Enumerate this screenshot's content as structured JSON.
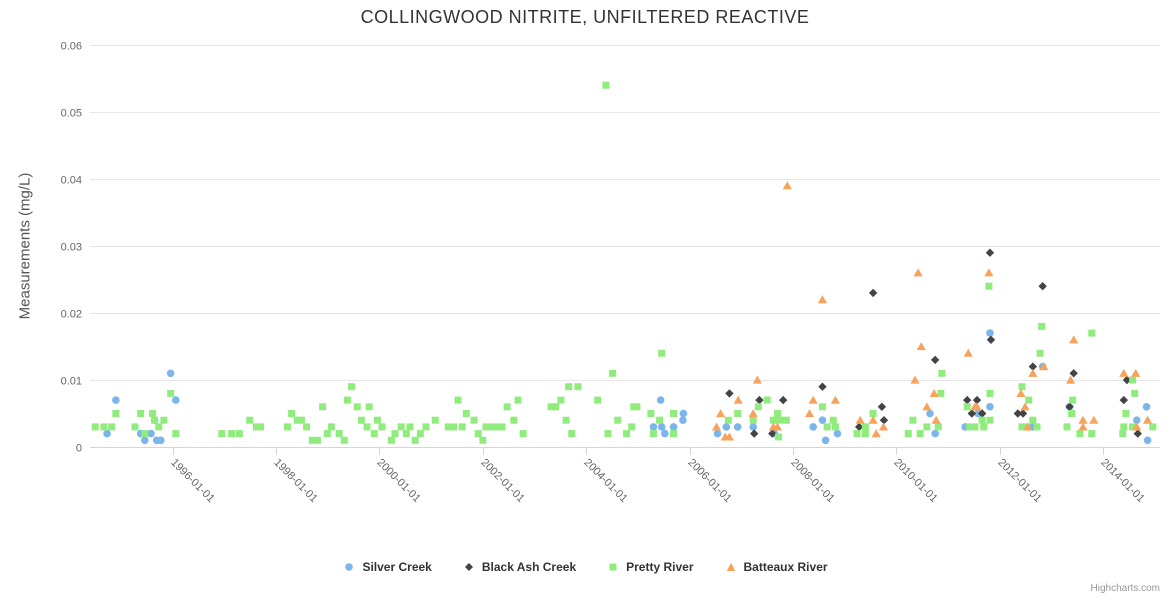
{
  "chart": {
    "title": "COLLINGWOOD NITRITE, UNFILTERED REACTIVE",
    "credits": "Highcharts.com"
  },
  "chart_data": {
    "type": "scatter",
    "title": "COLLINGWOOD NITRITE, UNFILTERED REACTIVE",
    "xlabel": "",
    "ylabel": "Measurements (mg/L)",
    "x_unit": "decimal_year",
    "xlim": [
      1994.4,
      2015.1
    ],
    "ylim": [
      0,
      0.06
    ],
    "grid": true,
    "legend_position": "bottom",
    "axis_line_color": "#ccd6eb",
    "grid_color": "#e6e6e6",
    "label_color": "#666666",
    "xticks": [
      {
        "v": 1996,
        "label": "1996-01-01"
      },
      {
        "v": 1998,
        "label": "1998-01-01"
      },
      {
        "v": 2000,
        "label": "2000-01-01"
      },
      {
        "v": 2002,
        "label": "2002-01-01"
      },
      {
        "v": 2004,
        "label": "2004-01-01"
      },
      {
        "v": 2006,
        "label": "2006-01-01"
      },
      {
        "v": 2008,
        "label": "2008-01-01"
      },
      {
        "v": 2010,
        "label": "2010-01-01"
      },
      {
        "v": 2012,
        "label": "2012-01-01"
      },
      {
        "v": 2014,
        "label": "2014-01-01"
      }
    ],
    "yticks": [
      {
        "v": 0,
        "label": "0"
      },
      {
        "v": 0.01,
        "label": "0.01"
      },
      {
        "v": 0.02,
        "label": "0.02"
      },
      {
        "v": 0.03,
        "label": "0.03"
      },
      {
        "v": 0.04,
        "label": "0.04"
      },
      {
        "v": 0.05,
        "label": "0.05"
      },
      {
        "v": 0.06,
        "label": "0.06"
      }
    ],
    "series": [
      {
        "name": "Silver Creek",
        "color": "#7cb5ec",
        "marker": "circle",
        "data": [
          [
            1994.73,
            0.002
          ],
          [
            1994.9,
            0.007
          ],
          [
            1995.38,
            0.002
          ],
          [
            1995.46,
            0.001
          ],
          [
            1995.58,
            0.002
          ],
          [
            1995.65,
            0.004
          ],
          [
            1995.69,
            0.001
          ],
          [
            1995.77,
            0.001
          ],
          [
            1995.96,
            0.011
          ],
          [
            1996.06,
            0.007
          ],
          [
            2005.3,
            0.003
          ],
          [
            2005.44,
            0.007
          ],
          [
            2005.46,
            0.003
          ],
          [
            2005.52,
            0.002
          ],
          [
            2005.69,
            0.003
          ],
          [
            2005.87,
            0.004
          ],
          [
            2005.88,
            0.005
          ],
          [
            2006.54,
            0.002
          ],
          [
            2006.71,
            0.003
          ],
          [
            2006.93,
            0.003
          ],
          [
            2007.23,
            0.003
          ],
          [
            2007.64,
            0.002
          ],
          [
            2008.39,
            0.003
          ],
          [
            2008.57,
            0.004
          ],
          [
            2008.63,
            0.001
          ],
          [
            2008.86,
            0.002
          ],
          [
            2010.65,
            0.005
          ],
          [
            2010.75,
            0.002
          ],
          [
            2011.33,
            0.003
          ],
          [
            2011.58,
            0.005
          ],
          [
            2011.81,
            0.006
          ],
          [
            2011.81,
            0.017
          ],
          [
            2012.64,
            0.003
          ],
          [
            2012.83,
            0.012
          ],
          [
            2013.35,
            0.006
          ],
          [
            2014.65,
            0.004
          ],
          [
            2014.84,
            0.006
          ],
          [
            2014.86,
            0.001
          ]
        ]
      },
      {
        "name": "Black Ash Creek",
        "color": "#434348",
        "marker": "diamond",
        "data": [
          [
            2006.77,
            0.008
          ],
          [
            2007.25,
            0.002
          ],
          [
            2007.35,
            0.007
          ],
          [
            2007.6,
            0.002
          ],
          [
            2007.81,
            0.007
          ],
          [
            2008.57,
            0.009
          ],
          [
            2009.28,
            0.003
          ],
          [
            2009.55,
            0.023
          ],
          [
            2009.72,
            0.006
          ],
          [
            2009.76,
            0.004
          ],
          [
            2010.75,
            0.013
          ],
          [
            2011.37,
            0.007
          ],
          [
            2011.46,
            0.005
          ],
          [
            2011.56,
            0.007
          ],
          [
            2011.66,
            0.005
          ],
          [
            2011.81,
            0.029
          ],
          [
            2011.83,
            0.016
          ],
          [
            2012.35,
            0.005
          ],
          [
            2012.45,
            0.005
          ],
          [
            2012.64,
            0.012
          ],
          [
            2012.83,
            0.024
          ],
          [
            2013.35,
            0.006
          ],
          [
            2013.43,
            0.011
          ],
          [
            2014.4,
            0.007
          ],
          [
            2014.46,
            0.01
          ],
          [
            2014.67,
            0.002
          ]
        ]
      },
      {
        "name": "Pretty River",
        "color": "#90ed7d",
        "marker": "square",
        "data": [
          [
            1994.5,
            0.003
          ],
          [
            1994.67,
            0.003
          ],
          [
            1994.82,
            0.003
          ],
          [
            1994.9,
            0.005
          ],
          [
            1995.27,
            0.003
          ],
          [
            1995.38,
            0.005
          ],
          [
            1995.46,
            0.002
          ],
          [
            1995.61,
            0.005
          ],
          [
            1995.65,
            0.004
          ],
          [
            1995.73,
            0.003
          ],
          [
            1995.83,
            0.004
          ],
          [
            1995.96,
            0.008
          ],
          [
            1996.06,
            0.002
          ],
          [
            1996.95,
            0.002
          ],
          [
            1997.14,
            0.002
          ],
          [
            1997.29,
            0.002
          ],
          [
            1997.49,
            0.004
          ],
          [
            1997.62,
            0.003
          ],
          [
            1997.7,
            0.003
          ],
          [
            1998.22,
            0.003
          ],
          [
            1998.3,
            0.005
          ],
          [
            1998.41,
            0.004
          ],
          [
            1998.49,
            0.004
          ],
          [
            1998.59,
            0.003
          ],
          [
            1998.7,
            0.001
          ],
          [
            1998.8,
            0.001
          ],
          [
            1998.9,
            0.006
          ],
          [
            1998.99,
            0.002
          ],
          [
            1999.07,
            0.003
          ],
          [
            1999.22,
            0.002
          ],
          [
            1999.32,
            0.001
          ],
          [
            1999.38,
            0.007
          ],
          [
            1999.46,
            0.009
          ],
          [
            1999.57,
            0.006
          ],
          [
            1999.65,
            0.004
          ],
          [
            1999.76,
            0.003
          ],
          [
            1999.8,
            0.006
          ],
          [
            1999.9,
            0.002
          ],
          [
            1999.96,
            0.004
          ],
          [
            2000.05,
            0.003
          ],
          [
            2000.23,
            0.001
          ],
          [
            2000.3,
            0.002
          ],
          [
            2000.42,
            0.003
          ],
          [
            2000.52,
            0.002
          ],
          [
            2000.59,
            0.003
          ],
          [
            2000.69,
            0.001
          ],
          [
            2000.79,
            0.002
          ],
          [
            2000.9,
            0.003
          ],
          [
            2001.08,
            0.004
          ],
          [
            2001.33,
            0.003
          ],
          [
            2001.44,
            0.003
          ],
          [
            2001.52,
            0.007
          ],
          [
            2001.6,
            0.003
          ],
          [
            2001.68,
            0.005
          ],
          [
            2001.83,
            0.004
          ],
          [
            2001.91,
            0.002
          ],
          [
            2002.0,
            0.001
          ],
          [
            2002.06,
            0.003
          ],
          [
            2002.18,
            0.003
          ],
          [
            2002.29,
            0.003
          ],
          [
            2002.37,
            0.003
          ],
          [
            2002.47,
            0.006
          ],
          [
            2002.6,
            0.004
          ],
          [
            2002.68,
            0.007
          ],
          [
            2002.78,
            0.002
          ],
          [
            2003.32,
            0.006
          ],
          [
            2003.41,
            0.006
          ],
          [
            2003.51,
            0.007
          ],
          [
            2003.61,
            0.004
          ],
          [
            2003.66,
            0.009
          ],
          [
            2003.72,
            0.002
          ],
          [
            2003.84,
            0.009
          ],
          [
            2004.22,
            0.007
          ],
          [
            2004.38,
            0.054
          ],
          [
            2004.42,
            0.002
          ],
          [
            2004.51,
            0.011
          ],
          [
            2004.61,
            0.004
          ],
          [
            2004.78,
            0.002
          ],
          [
            2004.88,
            0.003
          ],
          [
            2004.92,
            0.006
          ],
          [
            2004.98,
            0.006
          ],
          [
            2005.25,
            0.005
          ],
          [
            2005.3,
            0.002
          ],
          [
            2005.42,
            0.004
          ],
          [
            2005.46,
            0.014
          ],
          [
            2005.69,
            0.005
          ],
          [
            2005.69,
            0.002
          ],
          [
            2006.75,
            0.004
          ],
          [
            2006.93,
            0.005
          ],
          [
            2007.23,
            0.004
          ],
          [
            2007.33,
            0.006
          ],
          [
            2007.5,
            0.007
          ],
          [
            2007.62,
            0.004
          ],
          [
            2007.7,
            0.005
          ],
          [
            2007.72,
            0.0015
          ],
          [
            2007.74,
            0.004
          ],
          [
            2007.87,
            0.004
          ],
          [
            2008.57,
            0.006
          ],
          [
            2008.66,
            0.003
          ],
          [
            2008.78,
            0.004
          ],
          [
            2008.82,
            0.003
          ],
          [
            2009.24,
            0.002
          ],
          [
            2009.4,
            0.003
          ],
          [
            2009.4,
            0.002
          ],
          [
            2009.55,
            0.005
          ],
          [
            2010.23,
            0.002
          ],
          [
            2010.32,
            0.004
          ],
          [
            2010.46,
            0.002
          ],
          [
            2010.59,
            0.003
          ],
          [
            2010.81,
            0.003
          ],
          [
            2010.86,
            0.008
          ],
          [
            2010.88,
            0.011
          ],
          [
            2011.37,
            0.006
          ],
          [
            2011.42,
            0.003
          ],
          [
            2011.52,
            0.003
          ],
          [
            2011.66,
            0.004
          ],
          [
            2011.69,
            0.003
          ],
          [
            2011.79,
            0.024
          ],
          [
            2011.81,
            0.008
          ],
          [
            2011.81,
            0.004
          ],
          [
            2012.43,
            0.009
          ],
          [
            2012.43,
            0.003
          ],
          [
            2012.52,
            0.003
          ],
          [
            2012.56,
            0.007
          ],
          [
            2012.64,
            0.004
          ],
          [
            2012.72,
            0.003
          ],
          [
            2012.78,
            0.014
          ],
          [
            2012.81,
            0.018
          ],
          [
            2013.3,
            0.003
          ],
          [
            2013.39,
            0.005
          ],
          [
            2013.41,
            0.007
          ],
          [
            2013.55,
            0.002
          ],
          [
            2013.78,
            0.017
          ],
          [
            2013.78,
            0.002
          ],
          [
            2014.38,
            0.002
          ],
          [
            2014.4,
            0.003
          ],
          [
            2014.44,
            0.005
          ],
          [
            2014.57,
            0.01
          ],
          [
            2014.57,
            0.003
          ],
          [
            2014.61,
            0.008
          ],
          [
            2014.96,
            0.003
          ]
        ]
      },
      {
        "name": "Batteaux River",
        "color": "#f7a35c",
        "marker": "triangle",
        "data": [
          [
            2006.52,
            0.003
          ],
          [
            2006.6,
            0.005
          ],
          [
            2006.69,
            0.0015
          ],
          [
            2006.77,
            0.0015
          ],
          [
            2006.94,
            0.007
          ],
          [
            2007.23,
            0.005
          ],
          [
            2007.31,
            0.01
          ],
          [
            2007.62,
            0.003
          ],
          [
            2007.7,
            0.003
          ],
          [
            2007.89,
            0.039
          ],
          [
            2008.32,
            0.005
          ],
          [
            2008.39,
            0.007
          ],
          [
            2008.57,
            0.022
          ],
          [
            2008.82,
            0.007
          ],
          [
            2009.3,
            0.004
          ],
          [
            2009.55,
            0.004
          ],
          [
            2009.61,
            0.002
          ],
          [
            2009.75,
            0.003
          ],
          [
            2010.36,
            0.01
          ],
          [
            2010.42,
            0.026
          ],
          [
            2010.48,
            0.015
          ],
          [
            2010.59,
            0.006
          ],
          [
            2010.73,
            0.008
          ],
          [
            2010.77,
            0.004
          ],
          [
            2011.39,
            0.014
          ],
          [
            2011.52,
            0.006
          ],
          [
            2011.56,
            0.006
          ],
          [
            2011.79,
            0.026
          ],
          [
            2012.41,
            0.008
          ],
          [
            2012.49,
            0.006
          ],
          [
            2012.54,
            0.003
          ],
          [
            2012.64,
            0.011
          ],
          [
            2012.85,
            0.012
          ],
          [
            2013.37,
            0.01
          ],
          [
            2013.43,
            0.016
          ],
          [
            2013.61,
            0.004
          ],
          [
            2013.61,
            0.003
          ],
          [
            2013.82,
            0.004
          ],
          [
            2014.4,
            0.011
          ],
          [
            2014.63,
            0.011
          ],
          [
            2014.65,
            0.003
          ],
          [
            2014.86,
            0.004
          ]
        ]
      }
    ]
  }
}
